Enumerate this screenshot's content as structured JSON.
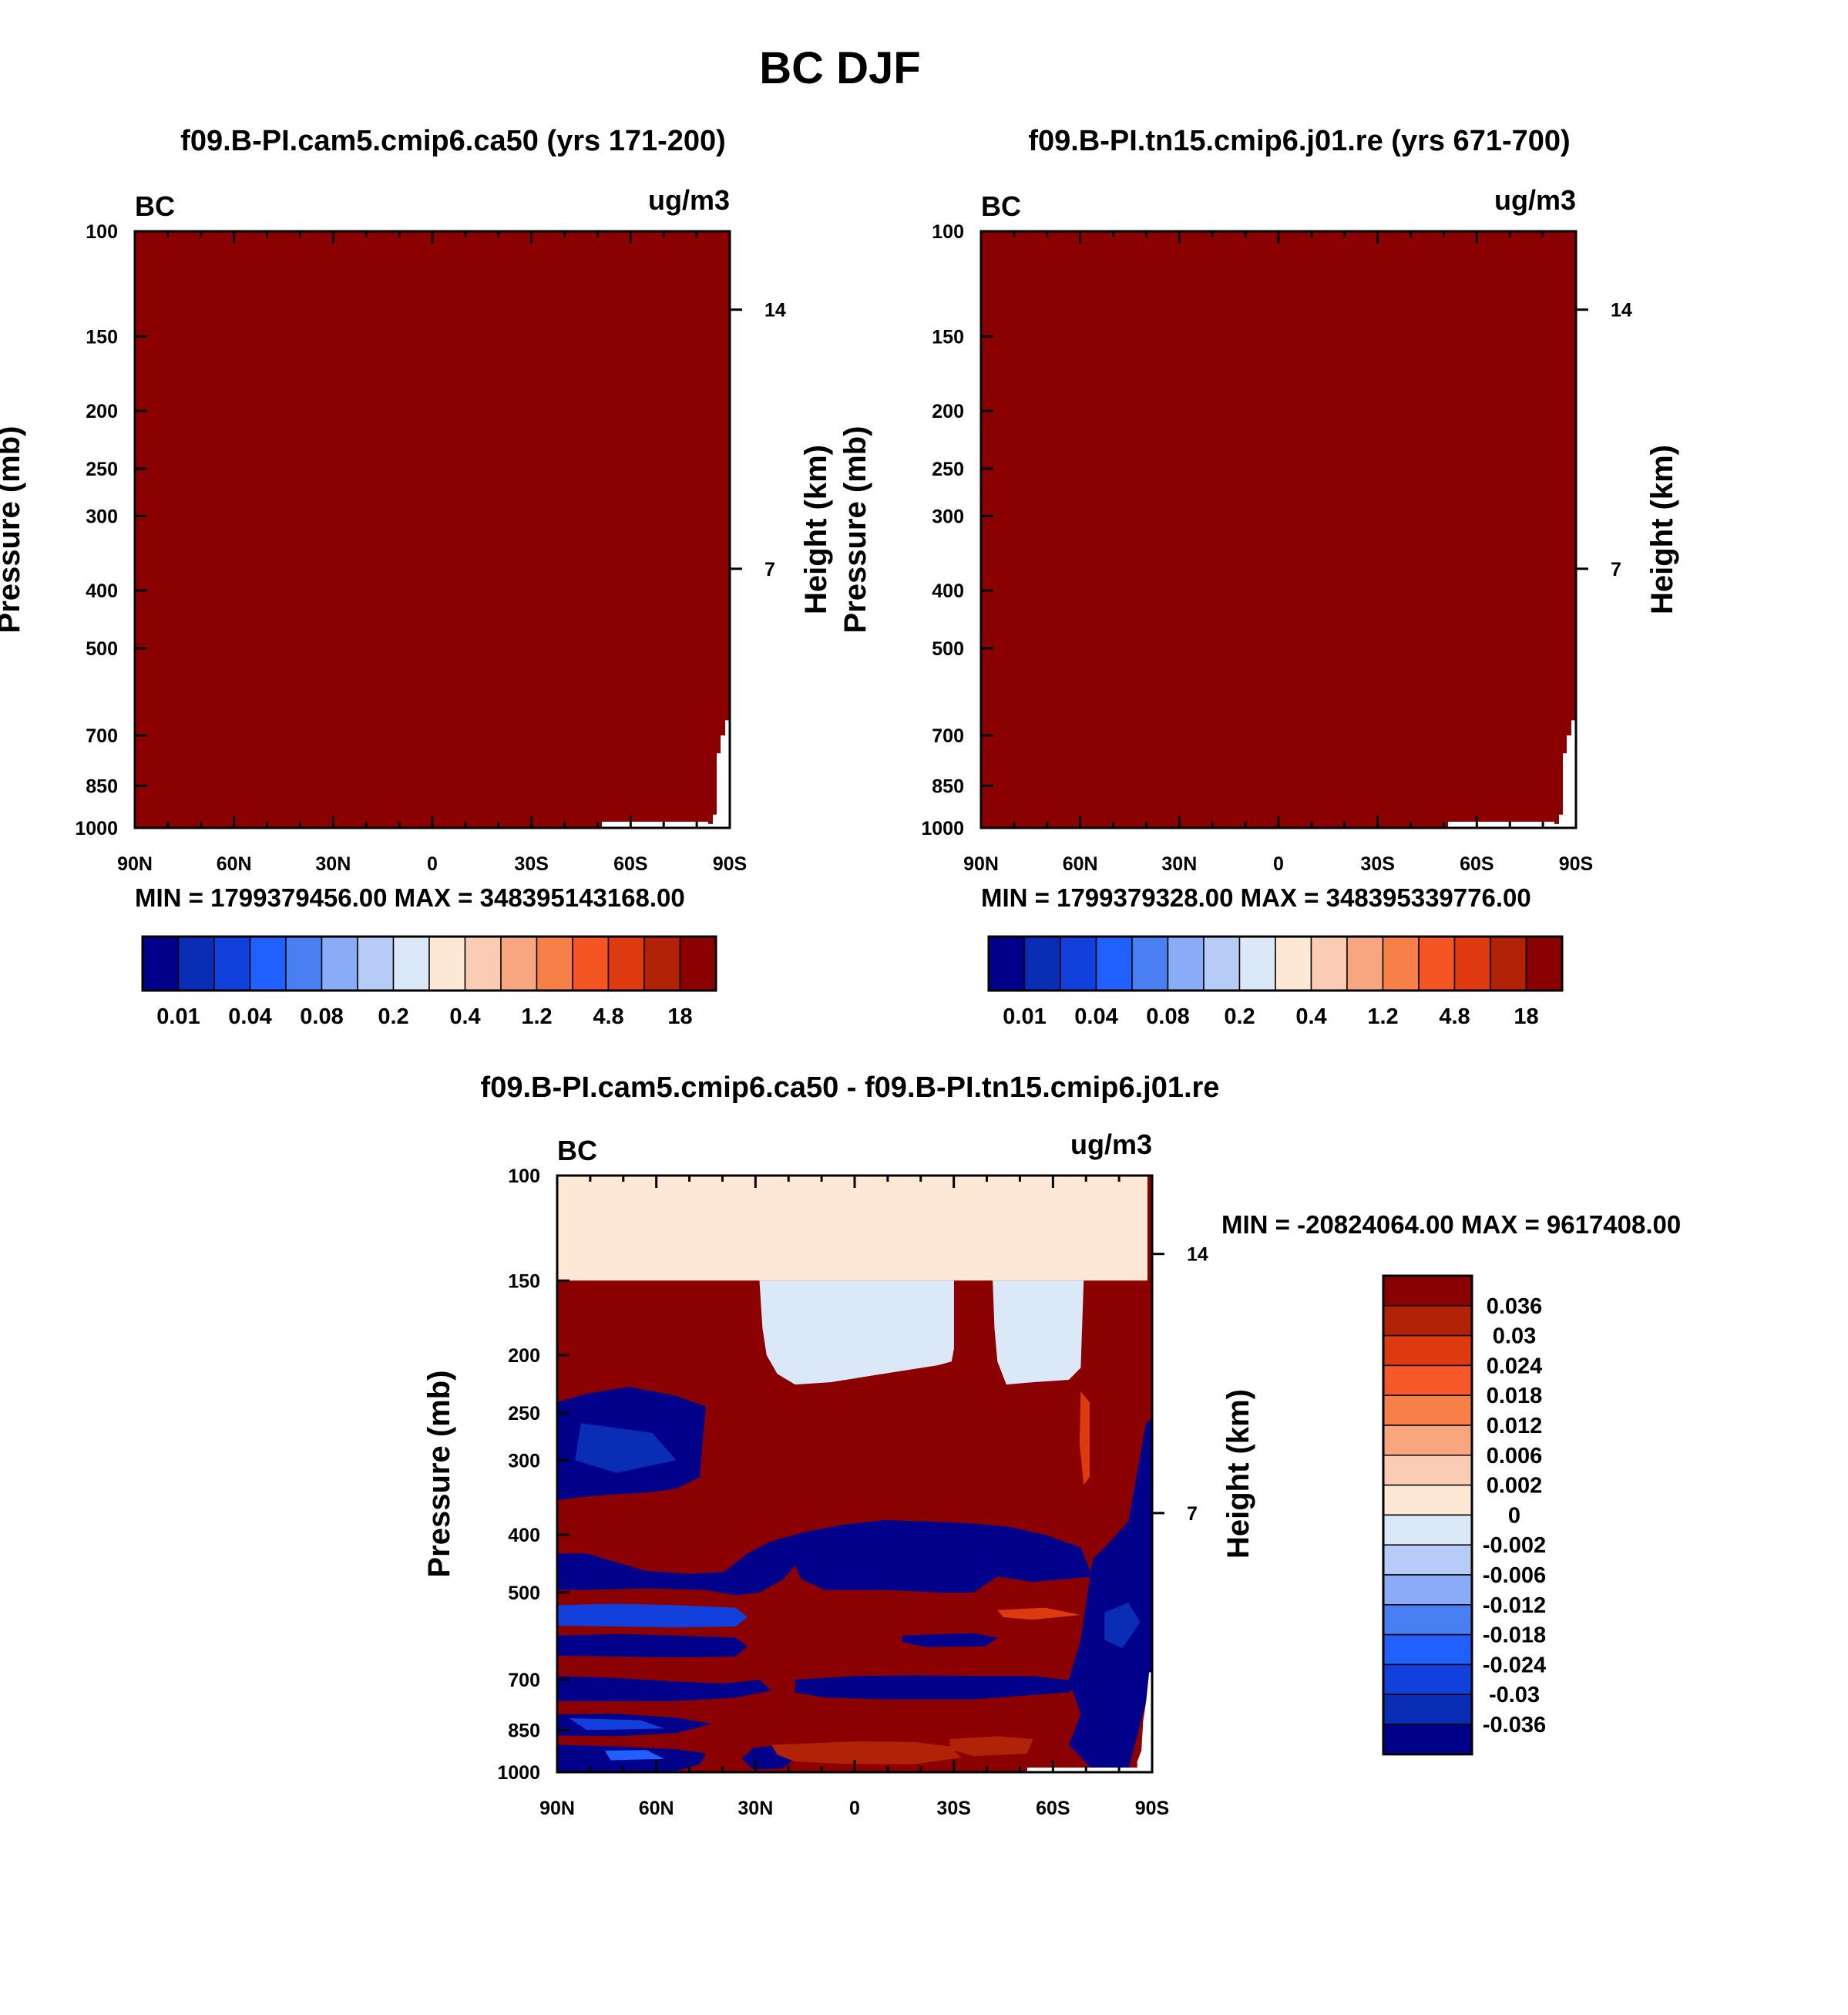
{
  "figure_title": "BC DJF",
  "chart_data": [
    {
      "type": "heatmap",
      "title": "f09.B-PI.cam5.cmip6.ca50 (yrs 171-200)",
      "variable": "BC",
      "units": "ug/m3",
      "xlabel": "",
      "ylabel": "Pressure (mb)",
      "ylabel_right": "Height (km)",
      "x_ticks": [
        "90N",
        "60N",
        "30N",
        "0",
        "30S",
        "60S",
        "90S"
      ],
      "y_ticks": [
        100,
        150,
        200,
        250,
        300,
        400,
        500,
        700,
        850,
        1000
      ],
      "right_ticks": [
        14,
        7
      ],
      "ylim": [
        1000,
        100
      ],
      "stats": "MIN = 1799379456.00  MAX = 348395143168.00",
      "dominant_level": 18,
      "colorbar_labels": [
        "0.01",
        "0.04",
        "0.08",
        "0.2",
        "0.4",
        "1.2",
        "4.8",
        "18"
      ]
    },
    {
      "type": "heatmap",
      "title": "f09.B-PI.tn15.cmip6.j01.re (yrs 671-700)",
      "variable": "BC",
      "units": "ug/m3",
      "xlabel": "",
      "ylabel": "Pressure (mb)",
      "ylabel_right": "Height (km)",
      "x_ticks": [
        "90N",
        "60N",
        "30N",
        "0",
        "30S",
        "60S",
        "90S"
      ],
      "y_ticks": [
        100,
        150,
        200,
        250,
        300,
        400,
        500,
        700,
        850,
        1000
      ],
      "right_ticks": [
        14,
        7
      ],
      "ylim": [
        1000,
        100
      ],
      "stats": "MIN = 1799379328.00  MAX = 348395339776.00",
      "dominant_level": 18,
      "colorbar_labels": [
        "0.01",
        "0.04",
        "0.08",
        "0.2",
        "0.4",
        "1.2",
        "4.8",
        "18"
      ]
    },
    {
      "type": "heatmap",
      "title": "f09.B-PI.cam5.cmip6.ca50 - f09.B-PI.tn15.cmip6.j01.re",
      "variable": "BC",
      "units": "ug/m3",
      "xlabel": "",
      "ylabel": "Pressure (mb)",
      "ylabel_right": "Height (km)",
      "x_ticks": [
        "90N",
        "60N",
        "30N",
        "0",
        "30S",
        "60S",
        "90S"
      ],
      "y_ticks": [
        100,
        150,
        200,
        250,
        300,
        400,
        500,
        700,
        850,
        1000
      ],
      "right_ticks": [
        14,
        7
      ],
      "ylim": [
        1000,
        100
      ],
      "stats": "MIN = -20824064.00  MAX = 9617408.00",
      "colorbar_labels": [
        "0.036",
        "0.03",
        "0.024",
        "0.018",
        "0.012",
        "0.006",
        "0.002",
        "0",
        "-0.002",
        "-0.006",
        "-0.012",
        "-0.018",
        "-0.024",
        "-0.03",
        "-0.036"
      ]
    }
  ],
  "palette": {
    "abs": [
      "#00008b",
      "#0a2db5",
      "#1140dc",
      "#2060ff",
      "#4a7ff2",
      "#8aacf7",
      "#b7cbf7",
      "#dbe8f8",
      "#fde8d5",
      "#f9ccb3",
      "#f7a67f",
      "#f78048",
      "#f45522",
      "#de3a10",
      "#b22206",
      "#8b0000"
    ],
    "diff": [
      "#8b0000",
      "#b22206",
      "#dd3a0f",
      "#f7582a",
      "#f78048",
      "#f9a67f",
      "#f9ccb3",
      "#fde8d5",
      "#dbe8f8",
      "#b7cbf7",
      "#8aacf7",
      "#4a7ff2",
      "#2060ff",
      "#1140dc",
      "#0a2db5",
      "#00008b"
    ]
  }
}
